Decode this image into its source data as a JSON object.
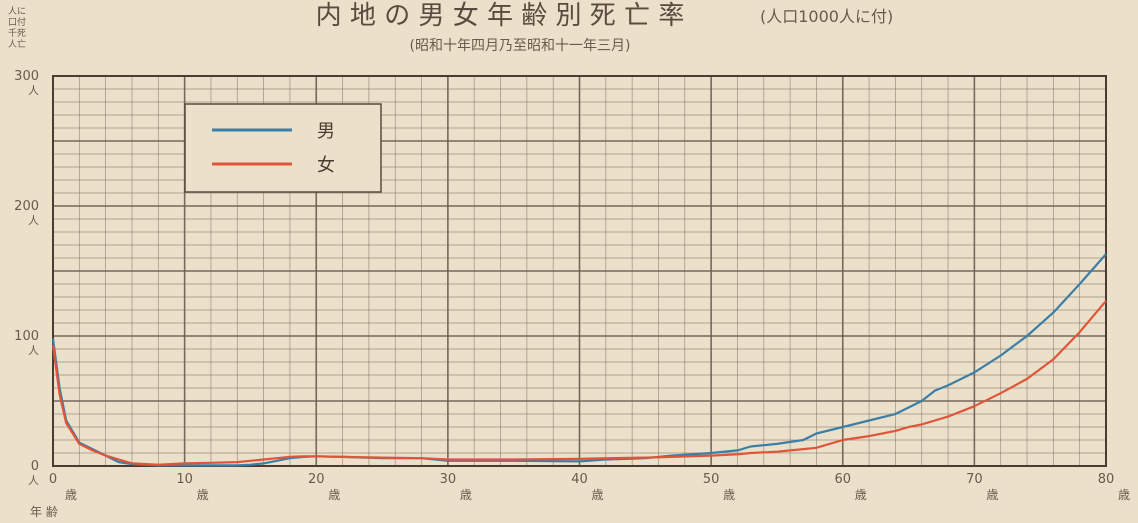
{
  "chart_data": {
    "type": "line",
    "title": "内 地 の 男 女 年 齢 別 死 亡 率",
    "title_note": "(人口1000人に付)",
    "subtitle": "(昭和十年四月乃至昭和十一年三月)",
    "y_axis_note": [
      "人に",
      "口付",
      "千死",
      "人亡"
    ],
    "x_axis_note": "年 齢",
    "xlim": [
      0,
      80
    ],
    "ylim": [
      0,
      300
    ],
    "grid": true,
    "legend_position": "top-left",
    "x_ticks": [
      {
        "value": 0,
        "label": "0",
        "unit": "歳"
      },
      {
        "value": 10,
        "label": "10",
        "unit": "歳"
      },
      {
        "value": 20,
        "label": "20",
        "unit": "歳"
      },
      {
        "value": 30,
        "label": "30",
        "unit": "歳"
      },
      {
        "value": 40,
        "label": "40",
        "unit": "歳"
      },
      {
        "value": 50,
        "label": "50",
        "unit": "歳"
      },
      {
        "value": 60,
        "label": "60",
        "unit": "歳"
      },
      {
        "value": 70,
        "label": "70",
        "unit": "歳"
      },
      {
        "value": 80,
        "label": "80",
        "unit": "歳"
      }
    ],
    "y_ticks": [
      {
        "value": 0,
        "label": "0",
        "unit": "人"
      },
      {
        "value": 100,
        "label": "100",
        "unit": "人"
      },
      {
        "value": 200,
        "label": "200",
        "unit": "人"
      },
      {
        "value": 300,
        "label": "300",
        "unit": "人"
      }
    ],
    "series": [
      {
        "name": "男",
        "color": "#3d7ea6",
        "x": [
          0,
          0.5,
          1,
          2,
          3,
          4,
          5,
          6,
          8,
          10,
          12,
          14,
          15,
          16,
          17,
          18,
          19,
          20,
          22,
          25,
          28,
          30,
          35,
          40,
          42,
          45,
          47,
          50,
          52,
          53,
          55,
          57,
          58,
          60,
          62,
          64,
          65,
          66,
          67,
          68,
          70,
          72,
          74,
          76,
          78,
          80
        ],
        "y": [
          98,
          60,
          35,
          18,
          13,
          8,
          3,
          1.5,
          0.5,
          0.5,
          0.5,
          0.5,
          1,
          2,
          4,
          6,
          7,
          7.5,
          7,
          6,
          6,
          4,
          4,
          3.5,
          5,
          6,
          8,
          10,
          12,
          15,
          17,
          20,
          25,
          30,
          35,
          40,
          45,
          50,
          58,
          62,
          72,
          85,
          100,
          118,
          140,
          163
        ]
      },
      {
        "name": "女",
        "color": "#e0553a",
        "x": [
          0,
          0.5,
          1,
          2,
          3,
          4,
          5,
          6,
          8,
          10,
          12,
          14,
          15,
          16,
          17,
          18,
          19,
          20,
          22,
          25,
          28,
          30,
          35,
          40,
          42,
          45,
          47,
          50,
          52,
          53,
          55,
          57,
          58,
          60,
          62,
          64,
          65,
          66,
          67,
          68,
          70,
          72,
          74,
          76,
          78,
          80
        ],
        "y": [
          93,
          55,
          33,
          17,
          12,
          8,
          5,
          2,
          1,
          2,
          2.5,
          3,
          4,
          5,
          6,
          7,
          7.5,
          7.5,
          7,
          6.5,
          6,
          5,
          5,
          5.5,
          6,
          6.5,
          7,
          8,
          9,
          10,
          11,
          13,
          14,
          20,
          23,
          27,
          30,
          32,
          35,
          38,
          46,
          56,
          67,
          82,
          103,
          127
        ]
      }
    ]
  }
}
